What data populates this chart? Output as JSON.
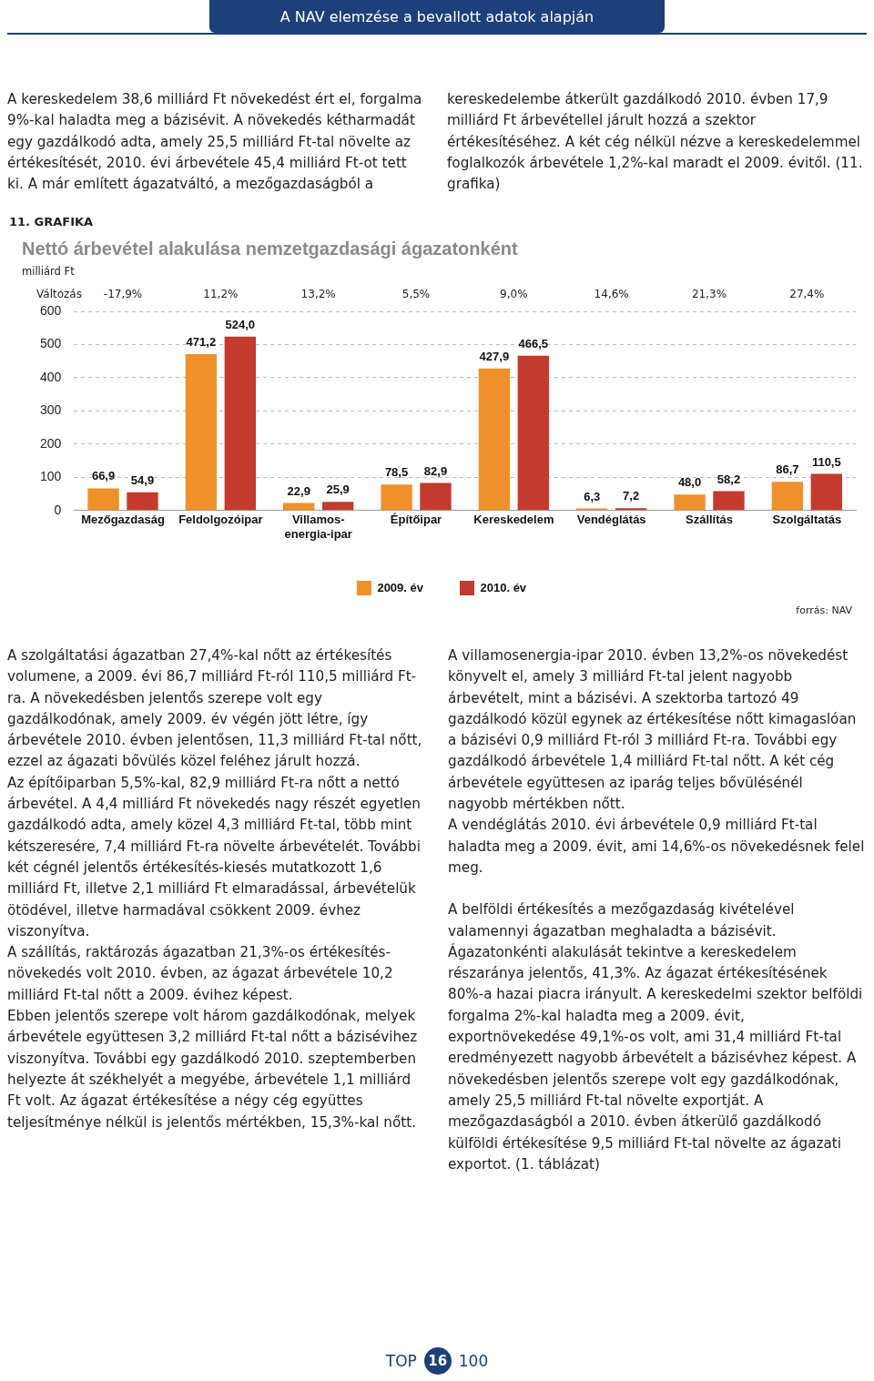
{
  "chart_data": {
    "type": "bar",
    "title": "Nettó árbevétel alakulása nemzetgazdasági ágazatonként",
    "ylabel": "milliárd Ft",
    "categories": [
      "Mezőgazdaság",
      "Feldolgozóipar",
      "Villamos-energia-ipar",
      "Építőipar",
      "Kereskedelem",
      "Vendéglátás",
      "Szállítás",
      "Szolgáltatás"
    ],
    "series": [
      {
        "name": "2009. év",
        "color": "#f0902a",
        "values": [
          66.9,
          471.2,
          22.9,
          78.5,
          427.9,
          6.3,
          48.0,
          86.7
        ],
        "value_labels": [
          "66,9",
          "471,2",
          "22,9",
          "78,5",
          "427,9",
          "6,3",
          "48,0",
          "86,7"
        ]
      },
      {
        "name": "2010. év",
        "color": "#c43a2c",
        "values": [
          54.9,
          524.0,
          25.9,
          82.9,
          466.5,
          7.2,
          58.2,
          110.5
        ],
        "value_labels": [
          "54,9",
          "524,0",
          "25,9",
          "82,9",
          "466,5",
          "7,2",
          "58,2",
          "110,5"
        ]
      }
    ],
    "ylim": [
      0,
      600
    ],
    "yticks": [
      0,
      100,
      200,
      300,
      400,
      500,
      600
    ],
    "grid": "y",
    "legend": "bottom",
    "annotations": [
      "A NAV elemzése a bevallott adatok alapján",
      "A kereskedelem 38,6 milliárd Ft növekedést ért el, forgalma 9%-kal haladta meg a bázisévit. A növekedés kétharmadát egy gazdálkodó adta, amely 25,5 milliárd Ft-tal növelte az értékesítését, 2010. évi árbevétele 45,4 milliárd Ft-ot tett ki. A már említett ágazatváltó, a mezőgazdaságból a kereskedelembe átkerült gazdálkodó 2010. évben 17,9 milliárd Ft árbevétellel járult hozzá a szektor értékesítéséhez. A két cég nélkül nézve a kereskedelemmel foglalkozók árbevétele 1,2%-kal maradt el 2009. évitől. (11. grafika)",
      "11. GRAFIKA",
      "Változás",
      "-17,9%",
      "11,2%",
      "13,2%",
      "5,5%",
      "9,0%",
      "14,6%",
      "21,3%",
      "27,4%",
      "forrás: NAV",
      "A szolgáltatási ágazatban 27,4%-kal nőtt az értékesítés volumene, a 2009. évi 86,7 milliárd Ft-ról 110,5 milliárd Ft-ra. A növekedésben jelentős szerepe volt egy gazdálkodónak, amely 2009. év végén jött létre, így árbevétele 2010. évben jelentősen, 11,3 milliárd Ft-tal nőtt, ezzel az ágazati bővülés közel feléhez járult hozzá.",
      "Az építőiparban 5,5%-kal, 82,9 milliárd Ft-ra nőtt a nettó árbevétel. A 4,4 milliárd Ft növekedés nagy részét egyetlen gazdálkodó adta, amely közel 4,3 milliárd Ft-tal, több mint kétszeresére, 7,4 milliárd Ft-ra növelte árbevételét. További két cégnél jelentős értékesítés-kiesés mutatkozott 1,6 milliárd Ft, illetve 2,1 milliárd Ft elmaradással, árbevételük ötödével, illetve harmadával csökkent 2009. évhez viszonyítva.",
      "A szállítás, raktározás ágazatban 21,3%-os értékesítés-növekedés volt 2010. évben, az ágazat árbevétele 10,2 milliárd Ft-tal nőtt a 2009. évihez képest.",
      "Ebben jelentős szerepe volt három gazdálkodónak, melyek árbevétele együttesen 3,2 milliárd Ft-tal nőtt a bázisévihez viszonyítva. További egy gazdálkodó 2010. szeptemberben helyezte át székhelyét a megyébe, árbevétele 1,1 milliárd Ft volt. Az ágazat értékesítése a négy cég együttes teljesítménye nélkül is jelentős mértékben, 15,3%-kal nőtt.",
      "A villamosenergia-ipar 2010. évben 13,2%-os növekedést könyvelt el, amely 3 milliárd Ft-tal jelent nagyobb árbevételt, mint a bázisévi. A szektorba tartozó 49 gazdálkodó közül egynek az értékesítése nőtt kimagaslóan a bázisévi 0,9 milliárd Ft-ról 3 milliárd Ft-ra. További egy gazdálkodó árbevétele 1,4 milliárd Ft-tal nőtt. A két cég árbevétele együttesen az iparág teljes bővülésénél nagyobb mértékben nőtt.",
      "A vendéglátás 2010. évi árbevétele 0,9 milliárd Ft-tal haladta meg a 2009. évit, ami 14,6%-os növekedésnek felel meg.",
      "A belföldi értékesítés a mezőgazdaság kivételével valamennyi ágazatban meghaladta a bázisévit. Ágazatonkénti alakulását tekintve a kereskedelem részaránya jelentős, 41,3%. Az ágazat értékesítésének 80%-a hazai piacra irányult. A kereskedelmi szektor belföldi forgalma 2%-kal haladta meg a 2009. évit, exportnövekedése 49,1%-os volt, ami 31,4 milliárd Ft-tal eredményezett nagyobb árbevételt a bázisévhez képest. A növekedésben jelentős szerepe volt egy gazdálkodónak, amely 25,5 milliárd Ft-tal növelte exportját. A mezőgazdaságból a 2010. évben átkerülő gazdálkodó külföldi értékesítése 9,5 milliárd Ft-tal növelte az ágazati exportot. (1. táblázat)",
      "TOP",
      "16",
      "100"
    ]
  }
}
